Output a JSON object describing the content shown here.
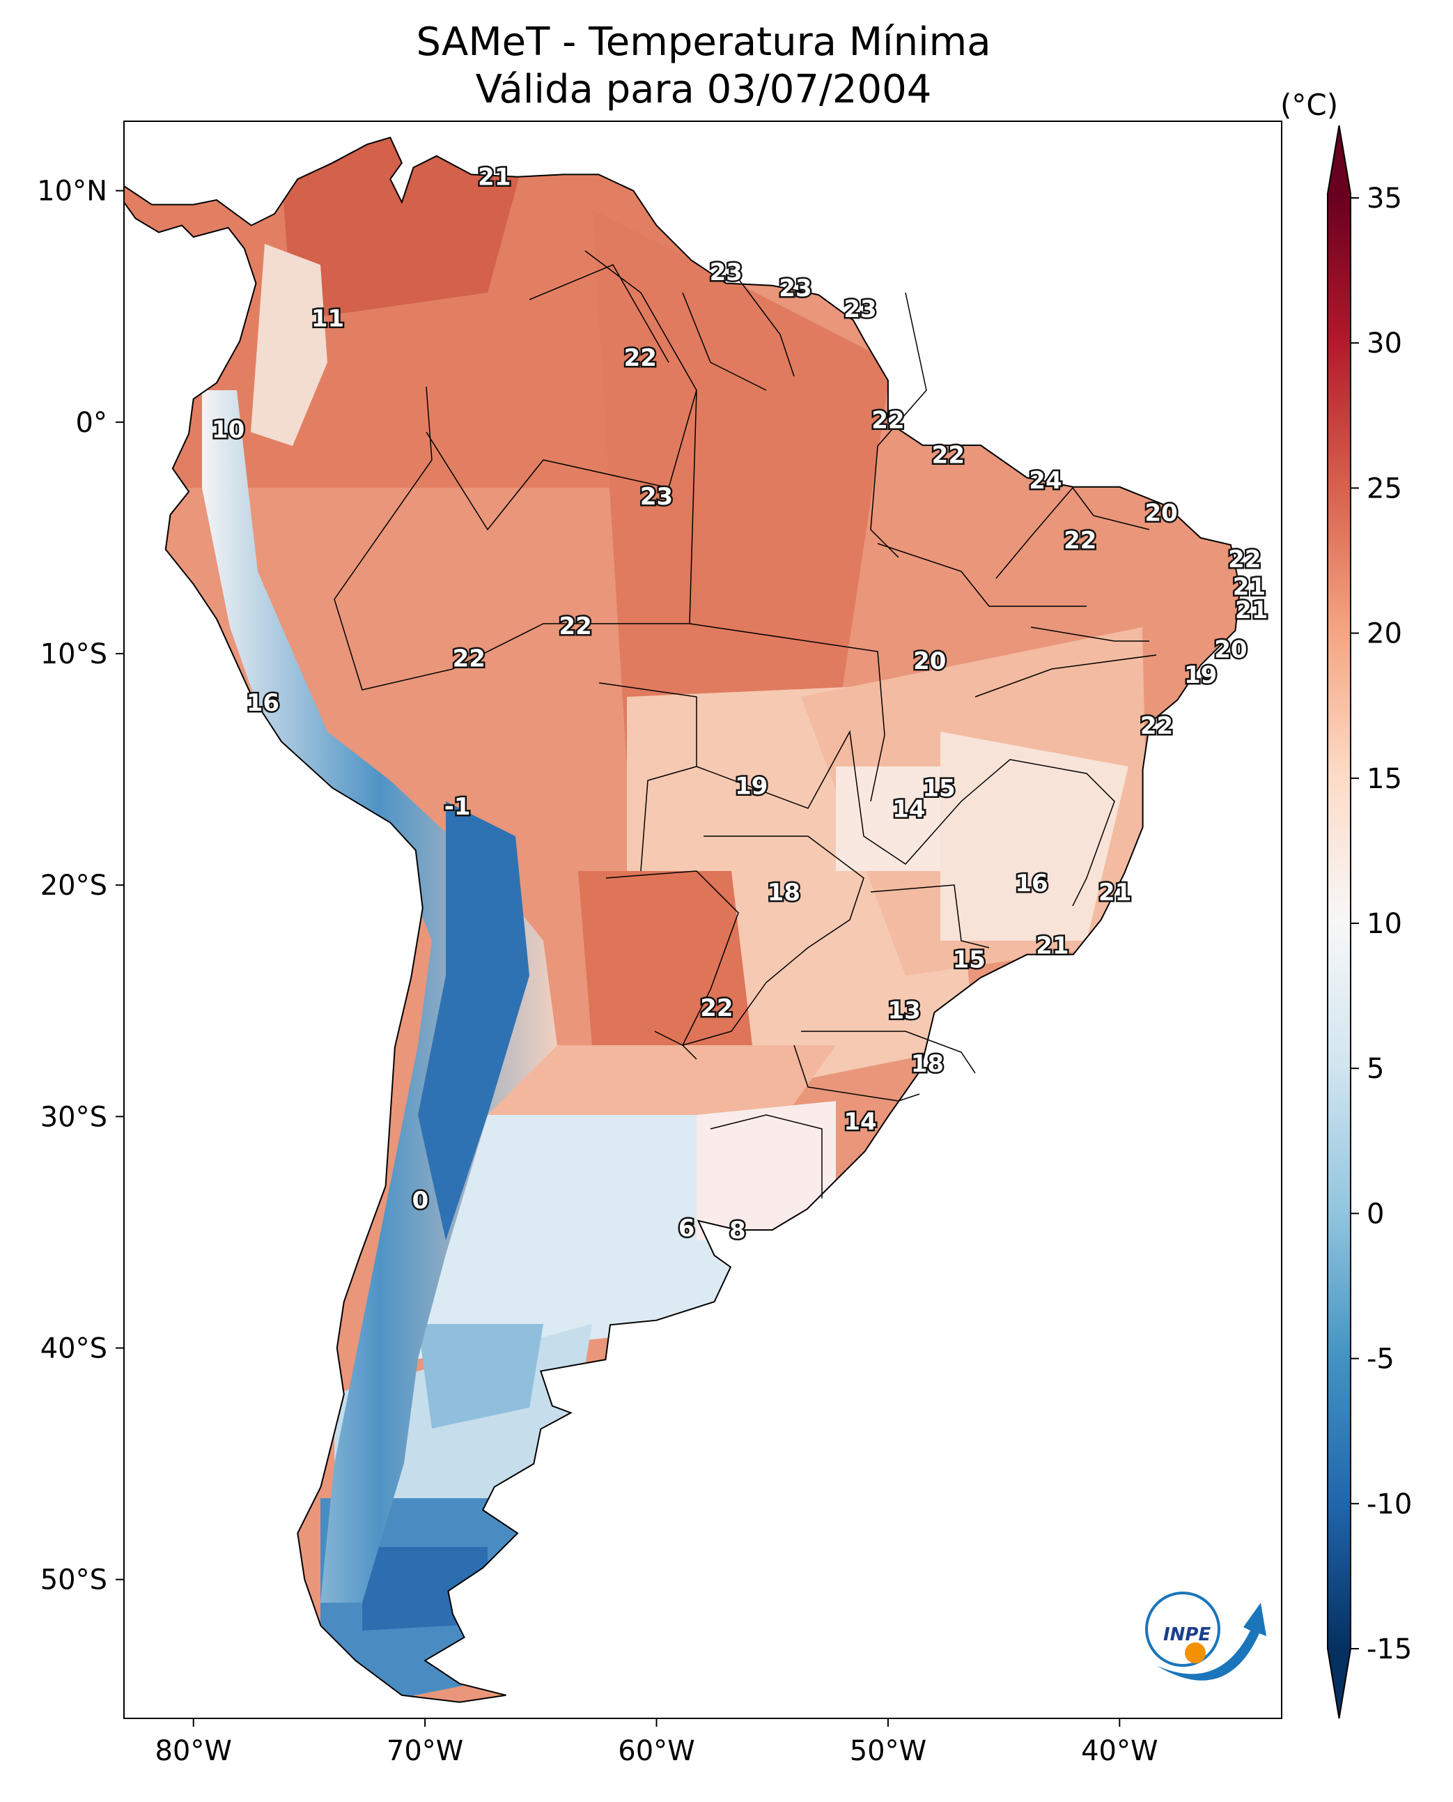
{
  "title": "SAMeT - Temperatura Mínima",
  "subtitle": "Válida para 03/07/2004",
  "colorbar": {
    "unit": "(°C)",
    "ticks": [
      "35",
      "30",
      "25",
      "20",
      "15",
      "10",
      "5",
      "0",
      "-5",
      "-10",
      "-15"
    ],
    "range": [
      -15,
      35
    ]
  },
  "axes": {
    "lon_ticks": [
      "80°W",
      "70°W",
      "60°W",
      "50°W",
      "40°W"
    ],
    "lat_ticks": [
      "10°N",
      "0°",
      "10°S",
      "20°S",
      "30°S",
      "40°S",
      "50°S"
    ],
    "lon_range": [
      -83,
      -33
    ],
    "lat_range": [
      -56,
      13
    ]
  },
  "logo": {
    "text": "INPE"
  },
  "map_labels": [
    {
      "v": "21",
      "lon": -67,
      "lat": 10.6
    },
    {
      "v": "23",
      "lon": -57,
      "lat": 6.5
    },
    {
      "v": "23",
      "lon": -54,
      "lat": 5.8
    },
    {
      "v": "23",
      "lon": -51.2,
      "lat": 4.9
    },
    {
      "v": "11",
      "lon": -74.2,
      "lat": 4.5
    },
    {
      "v": "22",
      "lon": -60.7,
      "lat": 2.8
    },
    {
      "v": "10",
      "lon": -78.5,
      "lat": -0.3
    },
    {
      "v": "22",
      "lon": -50,
      "lat": 0.1
    },
    {
      "v": "22",
      "lon": -47.4,
      "lat": -1.4
    },
    {
      "v": "24",
      "lon": -43.2,
      "lat": -2.5
    },
    {
      "v": "23",
      "lon": -60,
      "lat": -3.2
    },
    {
      "v": "20",
      "lon": -38.2,
      "lat": -3.9
    },
    {
      "v": "22",
      "lon": -41.7,
      "lat": -5.1
    },
    {
      "v": "22",
      "lon": -34.6,
      "lat": -5.9
    },
    {
      "v": "21",
      "lon": -34.4,
      "lat": -7.1
    },
    {
      "v": "21",
      "lon": -34.3,
      "lat": -8.1
    },
    {
      "v": "22",
      "lon": -63.5,
      "lat": -8.8
    },
    {
      "v": "22",
      "lon": -68.1,
      "lat": -10.2
    },
    {
      "v": "20",
      "lon": -48.2,
      "lat": -10.3
    },
    {
      "v": "20",
      "lon": -35.2,
      "lat": -9.8
    },
    {
      "v": "19",
      "lon": -36.5,
      "lat": -10.9
    },
    {
      "v": "16",
      "lon": -77,
      "lat": -12.1
    },
    {
      "v": "22",
      "lon": -38.4,
      "lat": -13.1
    },
    {
      "v": "19",
      "lon": -55.9,
      "lat": -15.7
    },
    {
      "v": "15",
      "lon": -47.8,
      "lat": -15.8
    },
    {
      "v": "14",
      "lon": -49.1,
      "lat": -16.7
    },
    {
      "v": "-1",
      "lon": -68.6,
      "lat": -16.6
    },
    {
      "v": "16",
      "lon": -43.8,
      "lat": -19.9
    },
    {
      "v": "18",
      "lon": -54.5,
      "lat": -20.3
    },
    {
      "v": "21",
      "lon": -40.2,
      "lat": -20.3
    },
    {
      "v": "21",
      "lon": -42.9,
      "lat": -22.6
    },
    {
      "v": "15",
      "lon": -46.5,
      "lat": -23.2
    },
    {
      "v": "22",
      "lon": -57.4,
      "lat": -25.3
    },
    {
      "v": "13",
      "lon": -49.3,
      "lat": -25.4
    },
    {
      "v": "18",
      "lon": -48.3,
      "lat": -27.7
    },
    {
      "v": "14",
      "lon": -51.2,
      "lat": -30.2
    },
    {
      "v": "0",
      "lon": -70.2,
      "lat": -33.6
    },
    {
      "v": "6",
      "lon": -58.7,
      "lat": -34.8
    },
    {
      "v": "8",
      "lon": -56.5,
      "lat": -34.9
    }
  ]
}
